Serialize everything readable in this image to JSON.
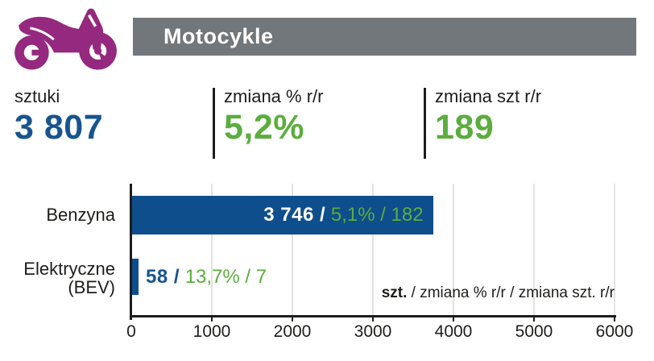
{
  "header": {
    "title": "Motocykle",
    "icon": "motorcycle-icon"
  },
  "colors": {
    "brand_purple": "#95287f",
    "header_gray": "#72777b",
    "bar_blue": "#0e4e8c",
    "value_blue": "#17548f",
    "value_green": "#5bad3e"
  },
  "stats": [
    {
      "label": "sztuki",
      "value": "3 807",
      "color": "#17548f"
    },
    {
      "label": "zmiana % r/r",
      "value": "5,2%",
      "color": "#5bad3e"
    },
    {
      "label": "zmiana szt r/r",
      "value": "189",
      "color": "#5bad3e"
    }
  ],
  "chart_data": {
    "type": "bar",
    "orientation": "horizontal",
    "categories": [
      "Benzyna",
      "Elektryczne (BEV)"
    ],
    "category_labels": [
      [
        "Benzyna"
      ],
      [
        "Elektryczne",
        "(BEV)"
      ]
    ],
    "series": [
      {
        "name": "szt.",
        "values": [
          3746,
          58
        ]
      },
      {
        "name": "zmiana % r/r",
        "values": [
          5.1,
          13.7
        ]
      },
      {
        "name": "zmiana szt. r/r",
        "values": [
          182,
          7
        ]
      }
    ],
    "bar_labels": [
      {
        "units": "3 746 /",
        "changes": "5,1% / 182"
      },
      {
        "units": "58 /",
        "changes": "13,7% / 7"
      }
    ],
    "xlim": [
      0,
      6000
    ],
    "x_ticks": [
      0,
      1000,
      2000,
      3000,
      4000,
      5000,
      6000
    ],
    "grid": true,
    "bar_color": "#0e4e8c",
    "note": {
      "lead": "szt.",
      "rest": " / zmiana % r/r / zmiana szt. r/r"
    }
  }
}
